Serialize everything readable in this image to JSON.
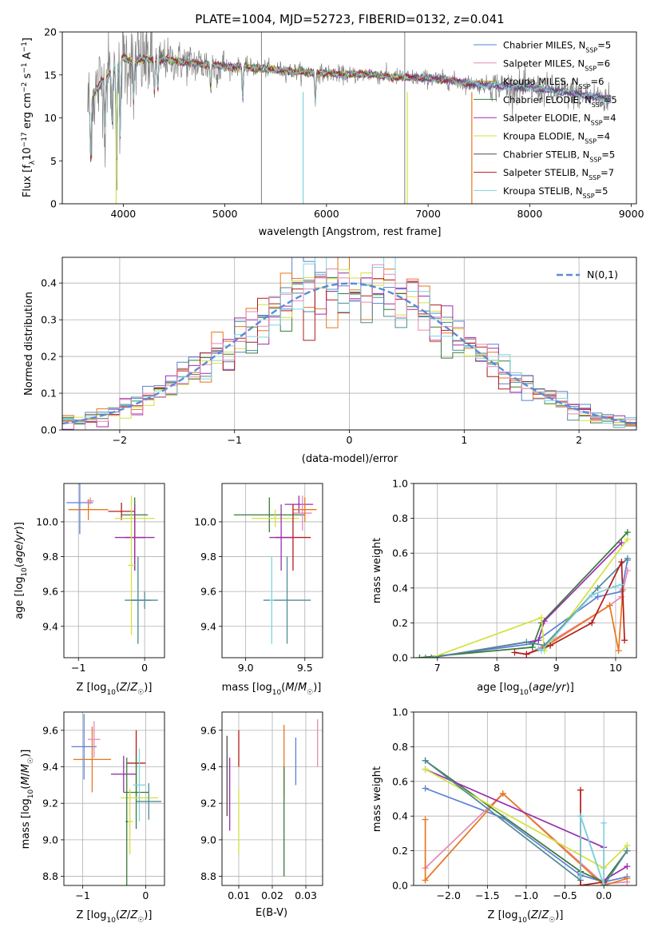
{
  "figure_title": "PLATE=1004, MJD=52723, FIBERID=0132, z=0.041",
  "colors": {
    "Chabrier MILES": "#5b7fd6",
    "Salpeter MILES": "#e48ab5",
    "Kroupa MILES": "#c08a1e",
    "Chabrier ELODIE": "#3a7a3a",
    "Salpeter ELODIE": "#9b2fae",
    "Kroupa ELODIE": "#d2e23e",
    "Chabrier STELIB": "#4d4d4d",
    "Salpeter STELIB": "#b31b1b",
    "Kroupa STELIB": "#7fd3de",
    "orange": "#e8761e",
    "slate": "#4f8a96",
    "gaussian": "#5b8bd6",
    "grid": "#b0b0b0"
  },
  "chart_data": [
    {
      "id": "spectrum",
      "type": "line",
      "title": "PLATE=1004, MJD=52723, FIBERID=0132, z=0.041",
      "xlabel": "wavelength [Angstrom, rest frame]",
      "ylabel": "Flux [f_λ 10^-17 erg cm^-2 s^-1 A^-1]",
      "xlim": [
        3400,
        9050
      ],
      "ylim": [
        0,
        20
      ],
      "xticks": [
        4000,
        5000,
        6000,
        7000,
        8000,
        9000
      ],
      "yticks": [
        0,
        5,
        10,
        15,
        20
      ],
      "grid": false,
      "legend_position": "top-right",
      "data_note": "observed spectrum (grey) 3650–8800 Å; SSP model fits overlaid",
      "series": [
        {
          "name": "Chabrier MILES",
          "nssp": "5",
          "color": "#5b7fd6"
        },
        {
          "name": "Salpeter MILES",
          "nssp": "6",
          "color": "#e48ab5"
        },
        {
          "name": "Kroupa MILES",
          "nssp": "6",
          "color": "#c08a1e"
        },
        {
          "name": "Chabrier ELODIE",
          "nssp": "5",
          "color": "#3a7a3a"
        },
        {
          "name": "Salpeter ELODIE",
          "nssp": "4",
          "color": "#9b2fae"
        },
        {
          "name": "Kroupa ELODIE",
          "nssp": "4",
          "color": "#d2e23e"
        },
        {
          "name": "Chabrier STELIB",
          "nssp": "5",
          "color": "#4d4d4d"
        },
        {
          "name": "Salpeter STELIB",
          "nssp": "7",
          "color": "#b31b1b"
        },
        {
          "name": "Kroupa STELIB",
          "nssp": "5",
          "color": "#7fd3de"
        }
      ],
      "continuum": {
        "x": [
          3650,
          3700,
          3800,
          3900,
          4000,
          4100,
          4200,
          4400,
          4600,
          4800,
          5000,
          5200,
          5400,
          5600,
          5800,
          6000,
          6200,
          6400,
          6600,
          6800,
          7000,
          7200,
          7400,
          7600,
          7800,
          8000,
          8200,
          8400,
          8600,
          8800
        ],
        "y": [
          11.5,
          12.5,
          14.5,
          15.5,
          17,
          16.5,
          16.8,
          16.8,
          16.5,
          16.2,
          16,
          15.9,
          15.7,
          15.5,
          15.3,
          15.2,
          15,
          15.1,
          14.8,
          14.7,
          14.6,
          14.4,
          14,
          13.8,
          13.6,
          13.5,
          13.2,
          12.9,
          12.5,
          12.2
        ]
      },
      "absorption_lines": [
        {
          "x": 3680,
          "depth": 8
        },
        {
          "x": 3820,
          "depth": 6
        },
        {
          "x": 3890,
          "depth": 7
        },
        {
          "x": 3934,
          "depth": 12
        },
        {
          "x": 3969,
          "depth": 10
        },
        {
          "x": 4101,
          "depth": 5
        },
        {
          "x": 4305,
          "depth": 4
        },
        {
          "x": 4340,
          "depth": 4
        },
        {
          "x": 4861,
          "depth": 3
        },
        {
          "x": 5175,
          "depth": 4
        },
        {
          "x": 5890,
          "depth": 4
        }
      ],
      "model_dropouts": [
        {
          "x": 3930,
          "color": "#d2e23e"
        },
        {
          "x": 5770,
          "color": "#7fd3de"
        },
        {
          "x": 6795,
          "color": "#d2e23e"
        },
        {
          "x": 7430,
          "color": "#e8761e"
        }
      ],
      "data_spikes": [
        {
          "x": 5360,
          "color": "#808080"
        },
        {
          "x": 6770,
          "color": "#808080"
        }
      ]
    },
    {
      "id": "residuals",
      "type": "histogram",
      "xlabel": "(data-model)/error",
      "ylabel": "Normed distribution",
      "xlim": [
        -2.5,
        2.5
      ],
      "ylim": [
        0,
        0.47
      ],
      "xticks": [
        -2,
        -1,
        0,
        1,
        2
      ],
      "yticks": [
        0.0,
        0.1,
        0.2,
        0.3,
        0.4
      ],
      "grid": true,
      "legend_label": "N(0,1)",
      "legend_position": "top-right",
      "bin_edges_range": [
        -2.5,
        2.5
      ],
      "bin_count": 50,
      "series": [
        {
          "color": "#5b7fd6"
        },
        {
          "color": "#e8761e"
        },
        {
          "color": "#3a7a3a"
        },
        {
          "color": "#9b2fae"
        },
        {
          "color": "#d2e23e"
        },
        {
          "color": "#4f8a96"
        },
        {
          "color": "#b31b1b"
        },
        {
          "color": "#7fd3de"
        },
        {
          "color": "#e48ab5"
        }
      ]
    },
    {
      "id": "age_vs_Z",
      "type": "errorbar",
      "xlabel": "Z [log10(Z/Z☉)]",
      "ylabel": "age [log10(age/yr)]",
      "xlim": [
        -1.22,
        0.3
      ],
      "ylim": [
        9.22,
        10.22
      ],
      "xticks": [
        -1,
        0
      ],
      "yticks": [
        9.4,
        9.6,
        9.8,
        10.0
      ],
      "grid": true,
      "points": [
        {
          "x": -0.98,
          "xerr": 0.2,
          "y": 10.11,
          "yerr": 0.18,
          "color": "#5b7fd6"
        },
        {
          "x": -0.85,
          "xerr": 0.3,
          "y": 10.07,
          "yerr": 0.06,
          "color": "#e8761e"
        },
        {
          "x": -0.82,
          "xerr": 0.05,
          "y": 10.12,
          "yerr": 0.02,
          "color": "#e48ab5"
        },
        {
          "x": -0.35,
          "xerr": 0.2,
          "y": 10.06,
          "yerr": 0.05,
          "color": "#b31b1b"
        },
        {
          "x": -0.15,
          "xerr": 0.3,
          "y": 10.02,
          "yerr": 0.1,
          "color": "#d2e23e"
        },
        {
          "x": -0.15,
          "xerr": 0.2,
          "y": 10.04,
          "yerr": 0.1,
          "color": "#3a7a3a"
        },
        {
          "x": -0.15,
          "xerr": 0.15,
          "y": 9.91,
          "yerr": 0.19,
          "color": "#b31b1b"
        },
        {
          "x": -0.15,
          "xerr": 0.3,
          "y": 9.91,
          "yerr": 0.19,
          "color": "#9b2fae"
        },
        {
          "x": -0.2,
          "xerr": 0.05,
          "y": 9.75,
          "yerr": 0.4,
          "color": "#d2e23e"
        },
        {
          "x": -0.1,
          "xerr": 0.1,
          "y": 9.55,
          "yerr": 0.25,
          "color": "#7fd3de"
        },
        {
          "x": -0.1,
          "xerr": 0.2,
          "y": 9.55,
          "yerr": 0.25,
          "color": "#4f8a96"
        },
        {
          "x": 0.0,
          "xerr": 0.2,
          "y": 9.55,
          "yerr": 0.05,
          "color": "#4f8a96"
        }
      ]
    },
    {
      "id": "age_vs_mass",
      "type": "errorbar",
      "xlabel": "mass [log10(M/M☉)]",
      "ylabel": "",
      "xlim": [
        8.8,
        9.65
      ],
      "ylim": [
        9.22,
        10.22
      ],
      "xticks": [
        9.0,
        9.5
      ],
      "yticks": [
        9.4,
        9.6,
        9.8,
        10.0
      ],
      "grid": true,
      "points": [
        {
          "x": 9.2,
          "xerr": 0.3,
          "y": 10.04,
          "yerr": 0.1,
          "color": "#3a7a3a"
        },
        {
          "x": 9.25,
          "xerr": 0.2,
          "y": 10.02,
          "yerr": 0.05,
          "color": "#d2e23e"
        },
        {
          "x": 9.45,
          "xerr": 0.12,
          "y": 10.1,
          "yerr": 0.05,
          "color": "#9b2fae"
        },
        {
          "x": 9.48,
          "xerr": 0.08,
          "y": 10.05,
          "yerr": 0.1,
          "color": "#e48ab5"
        },
        {
          "x": 9.5,
          "xerr": 0.1,
          "y": 10.07,
          "yerr": 0.07,
          "color": "#e8761e"
        },
        {
          "x": 9.4,
          "xerr": 0.15,
          "y": 9.91,
          "yerr": 0.19,
          "color": "#b31b1b"
        },
        {
          "x": 9.3,
          "xerr": 0.1,
          "y": 9.91,
          "yerr": 0.19,
          "color": "#9b2fae"
        },
        {
          "x": 9.35,
          "xerr": 0.2,
          "y": 9.55,
          "yerr": 0.25,
          "color": "#4f8a96"
        },
        {
          "x": 9.22,
          "xerr": 0.02,
          "y": 9.55,
          "yerr": 0.25,
          "color": "#7fd3de"
        }
      ]
    },
    {
      "id": "massweight_vs_age",
      "type": "line",
      "xlabel": "age [log10(age/yr)]",
      "ylabel": "mass weight",
      "xlim": [
        6.6,
        10.35
      ],
      "ylim": [
        0,
        1.0
      ],
      "xticks": [
        7,
        8,
        9,
        10
      ],
      "yticks": [
        0.0,
        0.2,
        0.4,
        0.6,
        0.8,
        1.0
      ],
      "grid": true,
      "series": [
        {
          "color": "#5b7fd6",
          "x": [
            6.8,
            8.6,
            9.7,
            10.1,
            10.2
          ],
          "y": [
            0.0,
            0.08,
            0.35,
            0.38,
            0.56
          ]
        },
        {
          "color": "#e48ab5",
          "x": [
            8.5,
            8.8,
            9.9,
            10.1,
            10.2
          ],
          "y": [
            0.02,
            0.07,
            0.3,
            0.35,
            0.5
          ]
        },
        {
          "color": "#e8761e",
          "x": [
            8.5,
            8.8,
            9.9,
            10.05,
            10.12
          ],
          "y": [
            0.02,
            0.06,
            0.3,
            0.04,
            0.39
          ]
        },
        {
          "color": "#3a7a3a",
          "x": [
            6.7,
            8.6,
            8.75,
            10.2
          ],
          "y": [
            0.0,
            0.06,
            0.2,
            0.72
          ]
        },
        {
          "color": "#9b2fae",
          "x": [
            6.9,
            8.7,
            8.8,
            10.1
          ],
          "y": [
            0.0,
            0.1,
            0.21,
            0.66
          ]
        },
        {
          "color": "#d2e23e",
          "x": [
            6.9,
            8.75,
            8.8,
            10.2
          ],
          "y": [
            0.0,
            0.23,
            0.04,
            0.68
          ]
        },
        {
          "color": "#4f8a96",
          "x": [
            6.9,
            8.5,
            8.8,
            9.7,
            10.2
          ],
          "y": [
            0.0,
            0.09,
            0.07,
            0.4,
            0.57
          ]
        },
        {
          "color": "#b31b1b",
          "x": [
            8.3,
            8.5,
            8.9,
            9.6,
            10.1,
            10.15
          ],
          "y": [
            0.03,
            0.02,
            0.07,
            0.2,
            0.55,
            0.1
          ]
        },
        {
          "color": "#7fd3de",
          "x": [
            8.7,
            8.75,
            9.6,
            10.0,
            10.1
          ],
          "y": [
            0.05,
            0.04,
            0.36,
            0.41,
            0.42
          ]
        }
      ]
    },
    {
      "id": "mass_vs_Z",
      "type": "errorbar",
      "xlabel": "Z [log10(Z/Z☉)]",
      "ylabel": "mass [log10(M/M☉)]",
      "xlim": [
        -1.3,
        0.3
      ],
      "ylim": [
        8.75,
        9.7
      ],
      "xticks": [
        -1,
        0
      ],
      "yticks": [
        8.8,
        9.0,
        9.2,
        9.4,
        9.6
      ],
      "grid": true,
      "points": [
        {
          "x": -0.98,
          "xerr": 0.2,
          "y": 9.51,
          "yerr": 0.18,
          "color": "#5b7fd6"
        },
        {
          "x": -0.85,
          "xerr": 0.3,
          "y": 9.44,
          "yerr": 0.18,
          "color": "#e8761e"
        },
        {
          "x": -0.82,
          "xerr": 0.1,
          "y": 9.55,
          "yerr": 0.1,
          "color": "#e48ab5"
        },
        {
          "x": -0.35,
          "xerr": 0.2,
          "y": 9.36,
          "yerr": 0.1,
          "color": "#9b2fae"
        },
        {
          "x": -0.15,
          "xerr": 0.15,
          "y": 9.42,
          "yerr": 0.18,
          "color": "#b31b1b"
        },
        {
          "x": -0.15,
          "xerr": 0.2,
          "y": 9.26,
          "yerr": 0.2,
          "color": "#3a7a3a"
        },
        {
          "x": -0.25,
          "xerr": 0.05,
          "y": 9.1,
          "yerr": 0.18,
          "color": "#d2e23e"
        },
        {
          "x": -0.1,
          "xerr": 0.3,
          "y": 9.23,
          "yerr": 0.02,
          "color": "#d2e23e"
        },
        {
          "x": -0.1,
          "xerr": 0.1,
          "y": 9.3,
          "yerr": 0.2,
          "color": "#7fd3de"
        },
        {
          "x": 0.05,
          "xerr": 0.2,
          "y": 9.21,
          "yerr": 0.1,
          "color": "#4f8a96"
        },
        {
          "x": -0.3,
          "xerr": 0.02,
          "y": 9.1,
          "yerr": 0.35,
          "color": "#3a7a3a"
        }
      ]
    },
    {
      "id": "mass_vs_EBV",
      "type": "errorbar",
      "xlabel": "E(B-V)",
      "ylabel": "",
      "xlim": [
        0.005,
        0.035
      ],
      "ylim": [
        8.75,
        9.7
      ],
      "xticks": [
        0.01,
        0.02,
        0.03
      ],
      "yticks": [
        8.8,
        9.0,
        9.2,
        9.4,
        9.6
      ],
      "grid": true,
      "points": [
        {
          "x": 0.0065,
          "y": 9.35,
          "yerr": 0.22,
          "color": "#4d4d4d"
        },
        {
          "x": 0.0073,
          "y": 9.25,
          "yerr": 0.2,
          "color": "#9b2fae"
        },
        {
          "x": 0.01,
          "y": 9.5,
          "yerr": 0.1,
          "color": "#b31b1b"
        },
        {
          "x": 0.01,
          "y": 9.1,
          "yerr": 0.18,
          "color": "#d2e23e"
        },
        {
          "x": 0.0235,
          "y": 9.43,
          "yerr": 0.2,
          "color": "#e8761e"
        },
        {
          "x": 0.0235,
          "y": 9.1,
          "yerr": 0.3,
          "color": "#3a7a3a"
        },
        {
          "x": 0.027,
          "y": 9.43,
          "yerr": 0.13,
          "color": "#5b7fd6"
        },
        {
          "x": 0.0335,
          "y": 9.53,
          "yerr": 0.13,
          "color": "#e48ab5"
        }
      ]
    },
    {
      "id": "massweight_vs_Z",
      "type": "line",
      "xlabel": "Z [log10(Z/Z☉)]",
      "ylabel": "mass weight",
      "xlim": [
        -2.45,
        0.42
      ],
      "ylim": [
        0,
        1.0
      ],
      "xticks": [
        -2.0,
        -1.5,
        -1.0,
        -0.5,
        0.0
      ],
      "yticks": [
        0.0,
        0.2,
        0.4,
        0.6,
        0.8,
        1.0
      ],
      "grid": true,
      "series": [
        {
          "color": "#5b7fd6",
          "x": [
            -2.3,
            -1.3,
            -0.3,
            0.0,
            0.3
          ],
          "y": [
            0.56,
            0.39,
            0.06,
            0.02,
            0.05
          ]
        },
        {
          "color": "#e48ab5",
          "x": [
            -2.3,
            -1.3,
            0.0,
            0.3
          ],
          "y": [
            0.1,
            0.53,
            0.01,
            0.02
          ]
        },
        {
          "color": "#e8761e",
          "x": [
            -2.3,
            -2.3,
            -1.3,
            0.0,
            0.3
          ],
          "y": [
            0.38,
            0.03,
            0.53,
            0.0,
            0.04
          ]
        },
        {
          "color": "#3a7a3a",
          "x": [
            -2.3,
            -0.3,
            0.0,
            0.3
          ],
          "y": [
            0.72,
            0.08,
            0.02,
            0.2
          ]
        },
        {
          "color": "#9b2fae",
          "x": [
            -2.3,
            0.0,
            0.0,
            0.3
          ],
          "y": [
            0.67,
            0.22,
            0.03,
            0.11
          ]
        },
        {
          "color": "#d2e23e",
          "x": [
            -2.3,
            0.0,
            0.3
          ],
          "y": [
            0.67,
            0.1,
            0.23
          ]
        },
        {
          "color": "#4f8a96",
          "x": [
            -2.3,
            -0.3,
            -0.3,
            0.0,
            0.3
          ],
          "y": [
            0.72,
            0.03,
            0.4,
            0.0,
            0.2
          ]
        },
        {
          "color": "#b31b1b",
          "x": [
            -0.3,
            -0.3,
            0.0,
            0.0
          ],
          "y": [
            0.55,
            0.0,
            0.02,
            0.0
          ]
        },
        {
          "color": "#7fd3de",
          "x": [
            -0.3,
            -0.3,
            0.0,
            0.0
          ],
          "y": [
            0.05,
            0.4,
            0.0,
            0.36
          ]
        }
      ]
    }
  ]
}
